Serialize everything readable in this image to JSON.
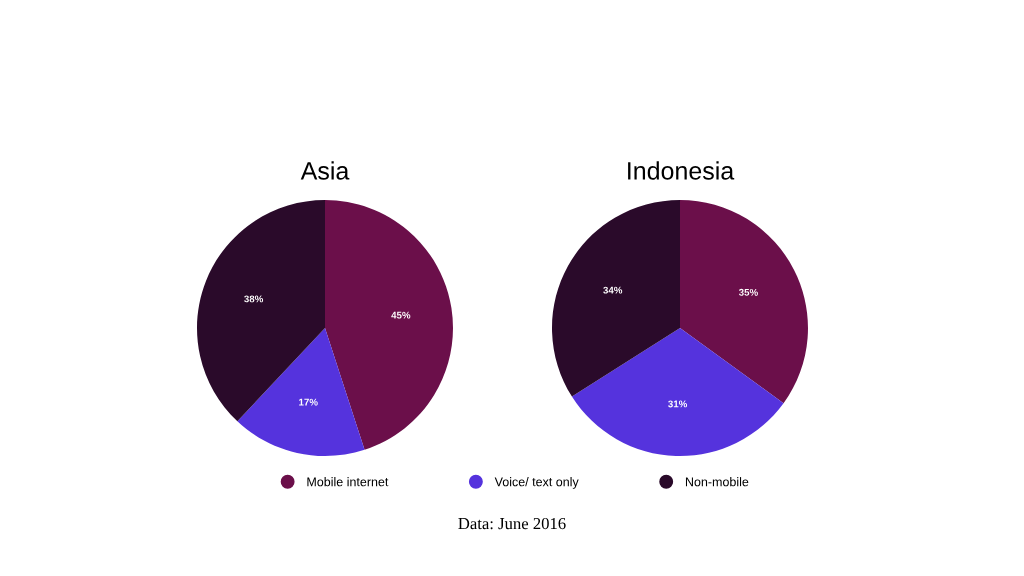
{
  "chart_data": [
    {
      "type": "pie",
      "title": "Asia",
      "categories": [
        "Mobile internet",
        "Voice/ text only",
        "Non-mobile"
      ],
      "values": [
        45,
        17,
        38
      ],
      "value_labels": [
        "45%",
        "17%",
        "38%"
      ],
      "colors": [
        "#6b0f4a",
        "#5533dd",
        "#2a0a2a"
      ],
      "legend": "bottom",
      "annotations": [
        "Data: June 2016"
      ]
    },
    {
      "type": "pie",
      "title": "Indonesia",
      "categories": [
        null,
        null,
        null
      ],
      "values": [
        35,
        31,
        34
      ],
      "value_labels": [
        "35%",
        "31%",
        "34%"
      ],
      "colors": [
        "#6b0f4a",
        "#5533dd",
        "#2a0a2a"
      ]
    }
  ]
}
